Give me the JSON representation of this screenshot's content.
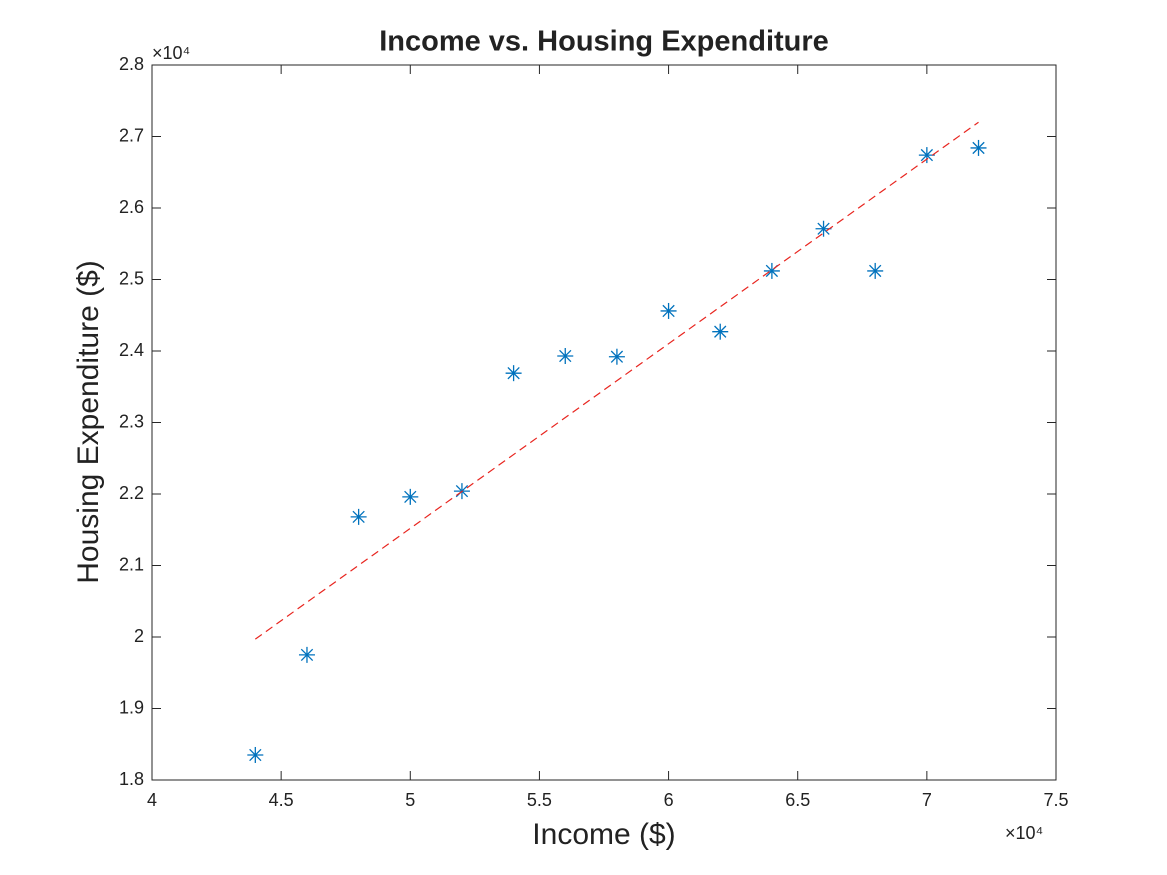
{
  "chart_data": {
    "type": "scatter",
    "title": "Income vs. Housing Expenditure",
    "x_label": "Income ($)",
    "y_label": "Housing Expenditure ($)",
    "x_multiplier": "×10⁴",
    "y_multiplier": "×10⁴",
    "xlim": [
      40000,
      75000
    ],
    "ylim": [
      18000,
      28000
    ],
    "xticks": [
      {
        "value": 40000,
        "label": "4"
      },
      {
        "value": 45000,
        "label": "4.5"
      },
      {
        "value": 50000,
        "label": "5"
      },
      {
        "value": 55000,
        "label": "5.5"
      },
      {
        "value": 60000,
        "label": "6"
      },
      {
        "value": 65000,
        "label": "6.5"
      },
      {
        "value": 70000,
        "label": "7"
      },
      {
        "value": 75000,
        "label": "7.5"
      }
    ],
    "yticks": [
      {
        "value": 18000,
        "label": "1.8"
      },
      {
        "value": 19000,
        "label": "1.9"
      },
      {
        "value": 20000,
        "label": "2"
      },
      {
        "value": 21000,
        "label": "2.1"
      },
      {
        "value": 22000,
        "label": "2.2"
      },
      {
        "value": 23000,
        "label": "2.3"
      },
      {
        "value": 24000,
        "label": "2.4"
      },
      {
        "value": 25000,
        "label": "2.5"
      },
      {
        "value": 26000,
        "label": "2.6"
      },
      {
        "value": 27000,
        "label": "2.7"
      },
      {
        "value": 28000,
        "label": "2.8"
      }
    ],
    "series": [
      {
        "type": "scatter",
        "marker": "asterisk",
        "color": "#0072bd",
        "x": [
          44000,
          46000,
          48000,
          50000,
          52000,
          54000,
          56000,
          58000,
          60000,
          62000,
          64000,
          66000,
          68000,
          70000,
          72000
        ],
        "values": [
          18350,
          19750,
          21680,
          21960,
          22040,
          23690,
          23930,
          23920,
          24560,
          24270,
          25120,
          25710,
          25120,
          26740,
          26840
        ]
      },
      {
        "type": "line",
        "line_style": "dashed",
        "color": "#e8251f",
        "x": [
          44000,
          72000
        ],
        "values": [
          19970,
          27200
        ]
      }
    ]
  }
}
